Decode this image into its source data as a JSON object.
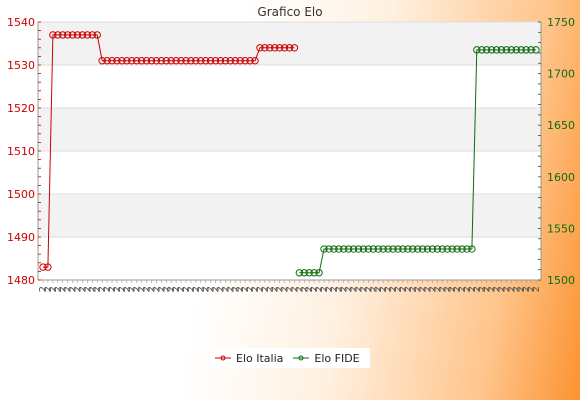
{
  "chart_data": {
    "type": "line",
    "title": "Grafico Elo",
    "xlabel": "",
    "y_left": {
      "ylim": [
        1480,
        1540
      ],
      "ticks": [
        1480,
        1490,
        1500,
        1510,
        1520,
        1530,
        1540
      ]
    },
    "y_right": {
      "ylim": [
        1500,
        1750
      ],
      "ticks": [
        1500,
        1550,
        1600,
        1650,
        1700,
        1750
      ]
    },
    "x_range": [
      0,
      100
    ],
    "grid": true,
    "legend_position": "bottom",
    "series": [
      {
        "name": "Elo Italia",
        "axis": "left",
        "color": "#cc0000",
        "points": [
          [
            0,
            1483
          ],
          [
            1,
            1483
          ],
          [
            2,
            1537
          ],
          [
            3,
            1537
          ],
          [
            4,
            1537
          ],
          [
            5,
            1537
          ],
          [
            6,
            1537
          ],
          [
            7,
            1537
          ],
          [
            8,
            1537
          ],
          [
            9,
            1537
          ],
          [
            10,
            1537
          ],
          [
            11,
            1537
          ],
          [
            12,
            1531
          ],
          [
            13,
            1531
          ],
          [
            14,
            1531
          ],
          [
            15,
            1531
          ],
          [
            16,
            1531
          ],
          [
            17,
            1531
          ],
          [
            18,
            1531
          ],
          [
            19,
            1531
          ],
          [
            20,
            1531
          ],
          [
            21,
            1531
          ],
          [
            22,
            1531
          ],
          [
            23,
            1531
          ],
          [
            24,
            1531
          ],
          [
            25,
            1531
          ],
          [
            26,
            1531
          ],
          [
            27,
            1531
          ],
          [
            28,
            1531
          ],
          [
            29,
            1531
          ],
          [
            30,
            1531
          ],
          [
            31,
            1531
          ],
          [
            32,
            1531
          ],
          [
            33,
            1531
          ],
          [
            34,
            1531
          ],
          [
            35,
            1531
          ],
          [
            36,
            1531
          ],
          [
            37,
            1531
          ],
          [
            38,
            1531
          ],
          [
            39,
            1531
          ],
          [
            40,
            1531
          ],
          [
            41,
            1531
          ],
          [
            42,
            1531
          ],
          [
            43,
            1531
          ],
          [
            44,
            1534
          ],
          [
            45,
            1534
          ],
          [
            46,
            1534
          ],
          [
            47,
            1534
          ],
          [
            48,
            1534
          ],
          [
            49,
            1534
          ],
          [
            50,
            1534
          ],
          [
            51,
            1534
          ]
        ]
      },
      {
        "name": "Elo FIDE",
        "axis": "right",
        "color": "#0e6b0e",
        "points": [
          [
            52,
            1507
          ],
          [
            53,
            1507
          ],
          [
            54,
            1507
          ],
          [
            55,
            1507
          ],
          [
            56,
            1507
          ],
          [
            57,
            1530
          ],
          [
            58,
            1530
          ],
          [
            59,
            1530
          ],
          [
            60,
            1530
          ],
          [
            61,
            1530
          ],
          [
            62,
            1530
          ],
          [
            63,
            1530
          ],
          [
            64,
            1530
          ],
          [
            65,
            1530
          ],
          [
            66,
            1530
          ],
          [
            67,
            1530
          ],
          [
            68,
            1530
          ],
          [
            69,
            1530
          ],
          [
            70,
            1530
          ],
          [
            71,
            1530
          ],
          [
            72,
            1530
          ],
          [
            73,
            1530
          ],
          [
            74,
            1530
          ],
          [
            75,
            1530
          ],
          [
            76,
            1530
          ],
          [
            77,
            1530
          ],
          [
            78,
            1530
          ],
          [
            79,
            1530
          ],
          [
            80,
            1530
          ],
          [
            81,
            1530
          ],
          [
            82,
            1530
          ],
          [
            83,
            1530
          ],
          [
            84,
            1530
          ],
          [
            85,
            1530
          ],
          [
            86,
            1530
          ],
          [
            87,
            1530
          ],
          [
            88,
            1723
          ],
          [
            89,
            1723
          ],
          [
            90,
            1723
          ],
          [
            91,
            1723
          ],
          [
            92,
            1723
          ],
          [
            93,
            1723
          ],
          [
            94,
            1723
          ],
          [
            95,
            1723
          ],
          [
            96,
            1723
          ],
          [
            97,
            1723
          ],
          [
            98,
            1723
          ],
          [
            99,
            1723
          ],
          [
            100,
            1723
          ]
        ]
      }
    ],
    "x_tick_label": "2"
  }
}
